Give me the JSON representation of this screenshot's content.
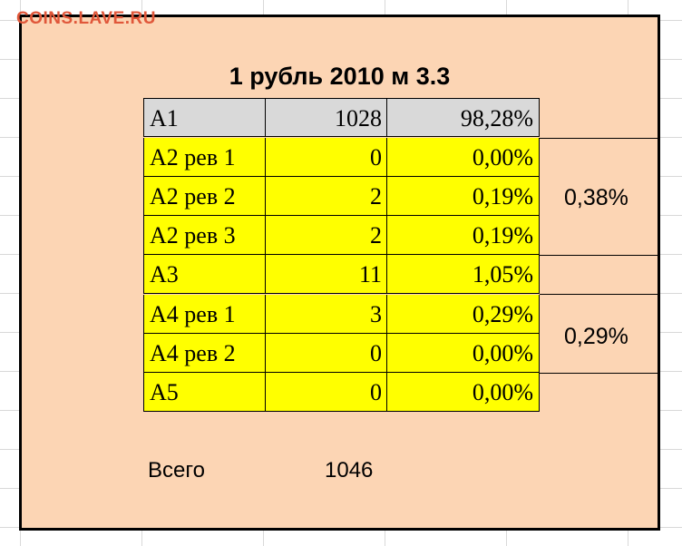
{
  "watermark": "COINS.LAVE.RU",
  "title": "1 рубль 2010 м 3.3",
  "rows": [
    {
      "label": "А1",
      "count": "1028",
      "percent": "98,28%"
    },
    {
      "label": "А2 рев 1",
      "count": "0",
      "percent": "0,00%"
    },
    {
      "label": "А2 рев 2",
      "count": "2",
      "percent": "0,19%"
    },
    {
      "label": "А2 рев 3",
      "count": "2",
      "percent": "0,19%"
    },
    {
      "label": "А3",
      "count": "11",
      "percent": "1,05%"
    },
    {
      "label": "А4 рев 1",
      "count": "3",
      "percent": "0,29%"
    },
    {
      "label": "А4 рев 2",
      "count": "0",
      "percent": "0,00%"
    },
    {
      "label": "А5",
      "count": "0",
      "percent": "0,00%"
    }
  ],
  "group_totals": {
    "a2": "0,38%",
    "a4": "0,29%"
  },
  "total": {
    "label": "Всего",
    "value": "1046"
  },
  "colors": {
    "panel": "#fcd5b4",
    "header_row": "#d9d9d9",
    "data_rows": "#ffff00",
    "watermark": "#e0573a"
  }
}
